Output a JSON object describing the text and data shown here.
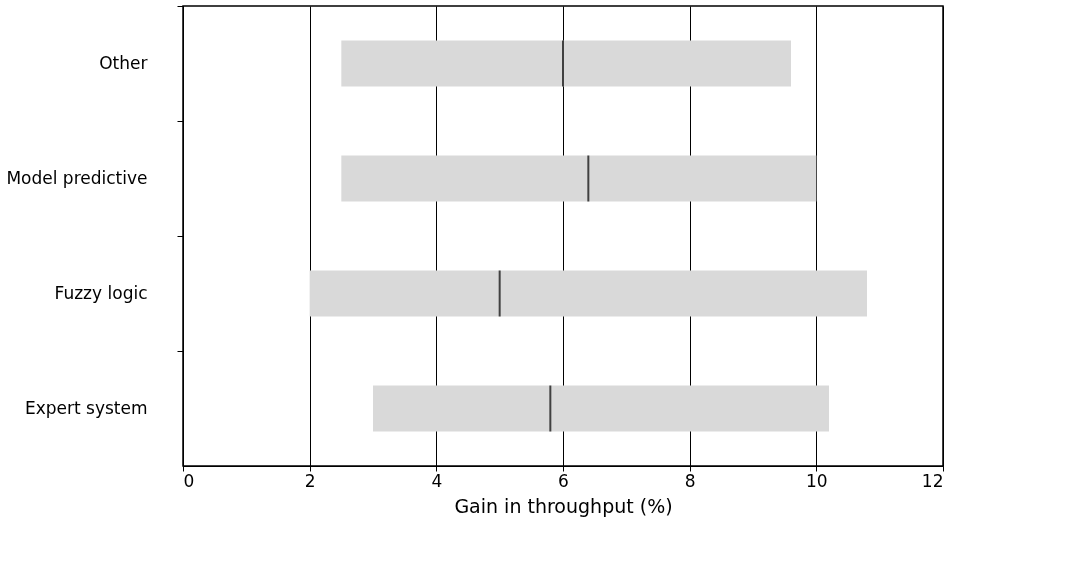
{
  "chart_data": {
    "type": "box",
    "orientation": "horizontal",
    "xlabel": "Gain in throughput (%)",
    "categories": [
      "Other",
      "Model predictive",
      "Fuzzy logic",
      "Expert system"
    ],
    "color": "#d9d9d9",
    "boxes": [
      {
        "low": 2.5,
        "q1": 2.5,
        "median": 6.0,
        "q3": 9.6,
        "high": 9.6
      },
      {
        "low": 2.5,
        "q1": 2.5,
        "median": 6.4,
        "q3": 10.0,
        "high": 10.0
      },
      {
        "low": 2.0,
        "q1": 2.0,
        "median": 5.0,
        "q3": 10.8,
        "high": 10.8
      },
      {
        "low": 3.0,
        "q1": 3.0,
        "median": 5.8,
        "q3": 10.2,
        "high": 10.2
      }
    ],
    "xlim": [
      0,
      12
    ],
    "xticks": [
      0,
      2,
      4,
      6,
      8,
      10,
      12
    ],
    "grid": "x"
  }
}
